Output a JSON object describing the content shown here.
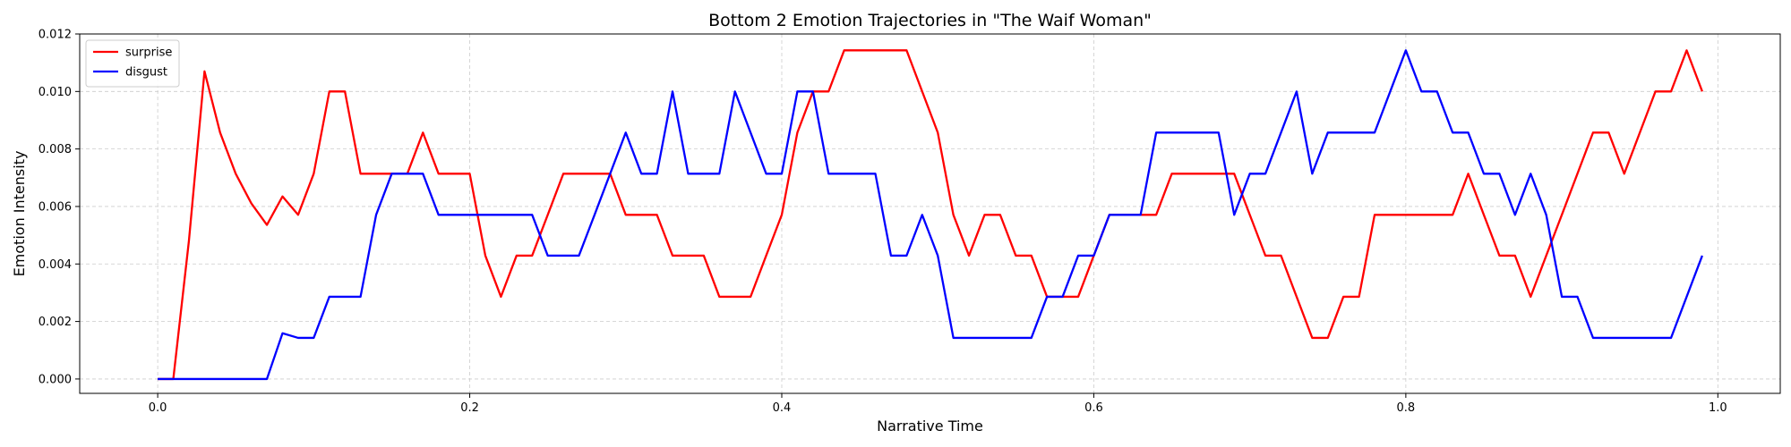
{
  "chart_data": {
    "type": "line",
    "title": "Bottom 2 Emotion Trajectories in \"The Waif Woman\"",
    "xlabel": "Narrative Time",
    "ylabel": "Emotion Intensity",
    "xlim": [
      -0.05,
      1.04
    ],
    "ylim": [
      -0.0005,
      0.012
    ],
    "x_ticks": [
      0.0,
      0.2,
      0.4,
      0.6,
      0.8,
      1.0
    ],
    "x_tick_labels": [
      "0.0",
      "0.2",
      "0.4",
      "0.6",
      "0.8",
      "1.0"
    ],
    "y_ticks": [
      0.0,
      0.002,
      0.004,
      0.006,
      0.008,
      0.01,
      0.012
    ],
    "y_tick_labels": [
      "0.000",
      "0.002",
      "0.004",
      "0.006",
      "0.008",
      "0.010",
      "0.012"
    ],
    "grid": true,
    "legend_position": "top-left",
    "x": [
      0.0,
      0.01,
      0.02,
      0.03,
      0.04,
      0.05,
      0.06,
      0.07,
      0.08,
      0.09,
      0.1,
      0.11,
      0.12,
      0.13,
      0.14,
      0.15,
      0.16,
      0.17,
      0.18,
      0.19,
      0.2,
      0.21,
      0.22,
      0.23,
      0.24,
      0.25,
      0.26,
      0.27,
      0.28,
      0.29,
      0.3,
      0.31,
      0.32,
      0.33,
      0.34,
      0.35,
      0.36,
      0.37,
      0.38,
      0.39,
      0.4,
      0.41,
      0.42,
      0.43,
      0.44,
      0.45,
      0.46,
      0.47,
      0.48,
      0.49,
      0.5,
      0.51,
      0.52,
      0.53,
      0.54,
      0.55,
      0.56,
      0.57,
      0.58,
      0.59,
      0.6,
      0.61,
      0.62,
      0.63,
      0.64,
      0.65,
      0.66,
      0.67,
      0.68,
      0.69,
      0.7,
      0.71,
      0.72,
      0.73,
      0.74,
      0.75,
      0.76,
      0.77,
      0.78,
      0.79,
      0.8,
      0.81,
      0.82,
      0.83,
      0.84,
      0.85,
      0.86,
      0.87,
      0.88,
      0.89,
      0.9,
      0.91,
      0.92,
      0.93,
      0.94,
      0.95,
      0.96,
      0.97,
      0.98,
      0.99
    ],
    "series": [
      {
        "name": "surprise",
        "color": "#ff0000",
        "values": [
          0,
          0,
          0.0048,
          0.0107,
          0.00857,
          0.00714,
          0.00611,
          0.00536,
          0.00635,
          0.00571,
          0.00714,
          0.01,
          0.01,
          0.00714,
          0.00714,
          0.00714,
          0.00714,
          0.00857,
          0.00714,
          0.00714,
          0.00714,
          0.00429,
          0.00286,
          0.00429,
          0.00429,
          0.00571,
          0.00714,
          0.00714,
          0.00714,
          0.00714,
          0.00571,
          0.00571,
          0.00571,
          0.00429,
          0.00429,
          0.00429,
          0.00286,
          0.00286,
          0.00286,
          0.00429,
          0.00571,
          0.00857,
          0.01,
          0.01,
          0.01143,
          0.01143,
          0.01143,
          0.01143,
          0.01143,
          0.01,
          0.00857,
          0.00571,
          0.00429,
          0.00571,
          0.00571,
          0.00429,
          0.00429,
          0.00286,
          0.00286,
          0.00286,
          0.00429,
          0.00571,
          0.00571,
          0.00571,
          0.00571,
          0.00714,
          0.00714,
          0.00714,
          0.00714,
          0.00714,
          0.00571,
          0.00429,
          0.00429,
          0.00286,
          0.00143,
          0.00143,
          0.00286,
          0.00286,
          0.00571,
          0.00571,
          0.00571,
          0.00571,
          0.00571,
          0.00571,
          0.00714,
          0.00571,
          0.00429,
          0.00429,
          0.00286,
          0.00429,
          0.00571,
          0.00714,
          0.00857,
          0.00857,
          0.00714,
          0.00857,
          0.01,
          0.01,
          0.01143,
          0.01
        ]
      },
      {
        "name": "disgust",
        "color": "#0000ff",
        "values": [
          0,
          0,
          0,
          0,
          0,
          0,
          0,
          0,
          0.00159,
          0.00143,
          0.00143,
          0.00286,
          0.00286,
          0.00286,
          0.00571,
          0.00714,
          0.00714,
          0.00714,
          0.00571,
          0.00571,
          0.00571,
          0.00571,
          0.00571,
          0.00571,
          0.00571,
          0.00429,
          0.00429,
          0.00429,
          0.00571,
          0.00714,
          0.00857,
          0.00714,
          0.00714,
          0.01,
          0.00714,
          0.00714,
          0.00714,
          0.01,
          0.00857,
          0.00714,
          0.00714,
          0.01,
          0.01,
          0.00714,
          0.00714,
          0.00714,
          0.00714,
          0.00429,
          0.00429,
          0.00571,
          0.00429,
          0.00143,
          0.00143,
          0.00143,
          0.00143,
          0.00143,
          0.00143,
          0.00286,
          0.00286,
          0.00429,
          0.00429,
          0.00571,
          0.00571,
          0.00571,
          0.00857,
          0.00857,
          0.00857,
          0.00857,
          0.00857,
          0.00571,
          0.00714,
          0.00714,
          0.00857,
          0.01,
          0.00714,
          0.00857,
          0.00857,
          0.00857,
          0.00857,
          0.01,
          0.01143,
          0.01,
          0.01,
          0.00857,
          0.00857,
          0.00714,
          0.00714,
          0.00571,
          0.00714,
          0.00571,
          0.00286,
          0.00286,
          0.00143,
          0.00143,
          0.00143,
          0.00143,
          0.00143,
          0.00143,
          0.00286,
          0.00429
        ]
      }
    ]
  }
}
